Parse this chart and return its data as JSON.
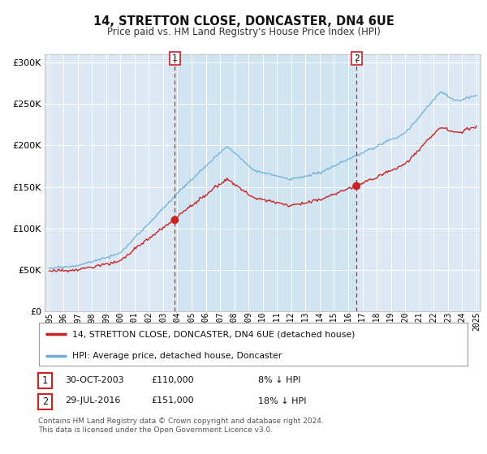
{
  "title": "14, STRETTON CLOSE, DONCASTER, DN4 6UE",
  "subtitle": "Price paid vs. HM Land Registry's House Price Index (HPI)",
  "bg_color": "#dce9f5",
  "shaded_bg": "#c8dff0",
  "hpi_color": "#6baed6",
  "price_color": "#cc2222",
  "marker_color": "#cc2222",
  "vline_color": "#cc2222",
  "sale1_date_num": 2003.83,
  "sale1_price": 110000,
  "sale2_date_num": 2016.58,
  "sale2_price": 151000,
  "footer1": "Contains HM Land Registry data © Crown copyright and database right 2024.",
  "footer2": "This data is licensed under the Open Government Licence v3.0.",
  "legend1": "14, STRETTON CLOSE, DONCASTER, DN4 6UE (detached house)",
  "legend2": "HPI: Average price, detached house, Doncaster",
  "table_row1": [
    "1",
    "30-OCT-2003",
    "£110,000",
    "8% ↓ HPI"
  ],
  "table_row2": [
    "2",
    "29-JUL-2016",
    "£151,000",
    "18% ↓ HPI"
  ]
}
